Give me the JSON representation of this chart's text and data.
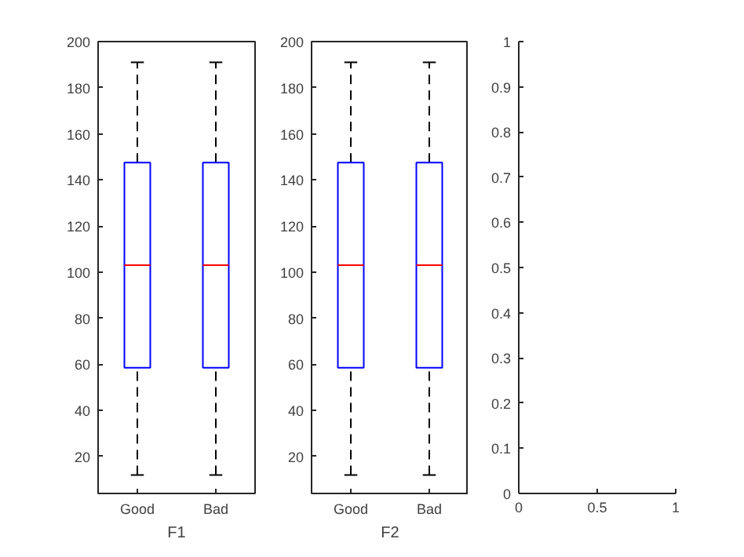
{
  "chart_data": [
    {
      "type": "box",
      "categories": [
        "Good",
        "Bad"
      ],
      "xlabel": "F1",
      "ylim": [
        4,
        200
      ],
      "yticks": [
        20,
        40,
        60,
        80,
        100,
        120,
        140,
        160,
        180,
        200
      ],
      "series": [
        {
          "color": "#0000ff",
          "boxes": [
            {
              "low": 12,
              "q1": 58.5,
              "median": 103,
              "q3": 147.5,
              "high": 191
            },
            {
              "low": 12,
              "q1": 58.5,
              "median": 103,
              "q3": 147.5,
              "high": 191
            }
          ]
        }
      ]
    },
    {
      "type": "box",
      "categories": [
        "Good",
        "Bad"
      ],
      "xlabel": "F2",
      "ylim": [
        4,
        200
      ],
      "yticks": [
        20,
        40,
        60,
        80,
        100,
        120,
        140,
        160,
        180,
        200
      ],
      "series": [
        {
          "color": "#0000ff",
          "boxes": [
            {
              "low": 12,
              "q1": 58.5,
              "median": 103,
              "q3": 147.5,
              "high": 191
            },
            {
              "low": 12,
              "q1": 58.5,
              "median": 103,
              "q3": 147.5,
              "high": 191
            }
          ]
        }
      ]
    },
    {
      "type": "scatter",
      "xlim": [
        0,
        1
      ],
      "ylim": [
        0,
        1
      ],
      "xticks": [
        0,
        0.5,
        1
      ],
      "yticks": [
        0,
        0.1,
        0.2,
        0.3,
        0.4,
        0.5,
        0.6,
        0.7,
        0.8,
        0.9,
        1
      ]
    }
  ]
}
